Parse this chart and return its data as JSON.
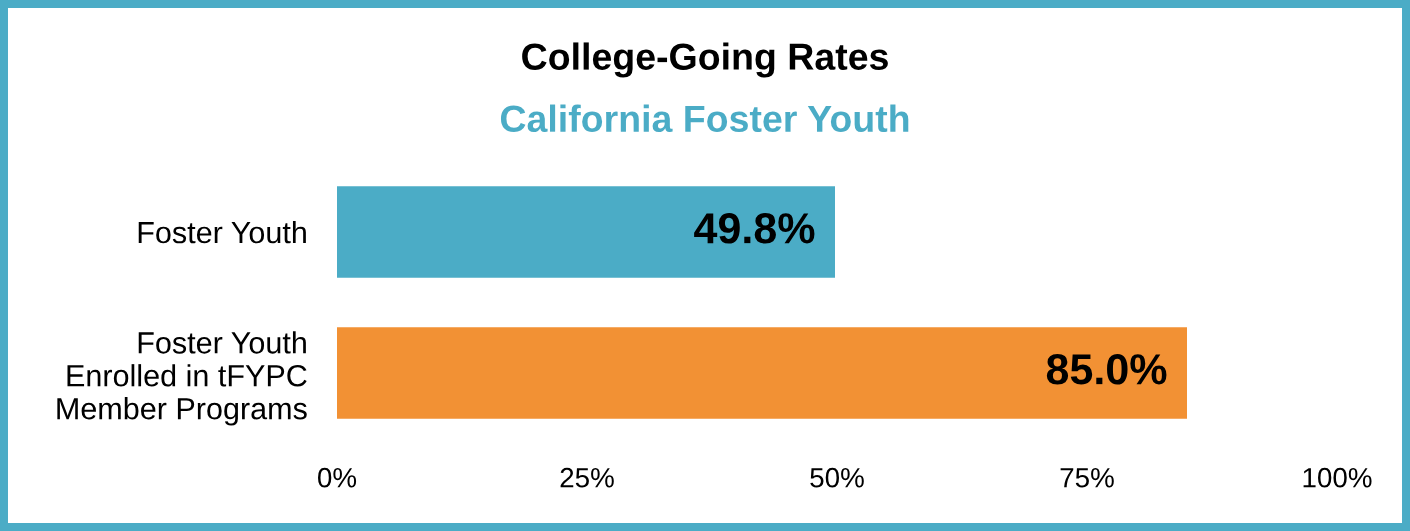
{
  "chart_data": {
    "type": "bar",
    "orientation": "horizontal",
    "title": "College-Going Rates",
    "subtitle": "California Foster Youth",
    "categories": [
      "Foster Youth",
      "Foster Youth\nEnrolled in tFYPC\nMember Programs"
    ],
    "values": [
      49.8,
      85.0
    ],
    "colors": [
      "#4BACC6",
      "#F29134"
    ],
    "value_labels": [
      "49.8%",
      "85.0%"
    ],
    "xlim": [
      0,
      100
    ],
    "xticks": [
      {
        "value": 0,
        "label": "0%"
      },
      {
        "value": 25,
        "label": "25%"
      },
      {
        "value": 50,
        "label": "50%"
      },
      {
        "value": 75,
        "label": "75%"
      },
      {
        "value": 100,
        "label": "100%"
      }
    ]
  }
}
